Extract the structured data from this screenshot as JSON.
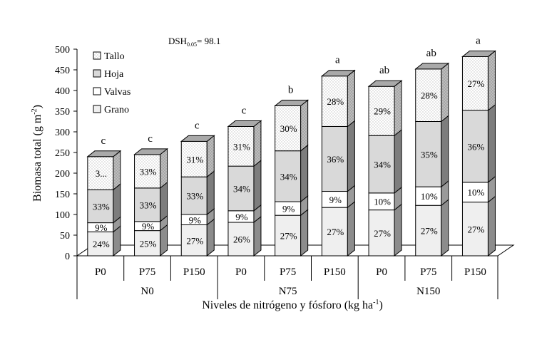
{
  "chart_data": {
    "type": "bar",
    "stacked": true,
    "three_d": true,
    "annotation_main": "DSH",
    "annotation_sub": "0.05",
    "annotation_value": "= 98.1",
    "ylabel_main": "Biomasa total (g m",
    "ylabel_sup": "-2",
    "ylabel_end": ")",
    "xlabel_main": "Niveles de nitrógeno y fósforo (kg ha",
    "xlabel_sup": "-1",
    "xlabel_end": ")",
    "ylim": [
      0,
      500
    ],
    "yticks": [
      "0",
      "50",
      "100",
      "150",
      "200",
      "250",
      "300",
      "350",
      "400",
      "450",
      "500"
    ],
    "legend_position": "top-left",
    "series_order_bottom_to_top": [
      "Grano",
      "Valvas",
      "Hoja",
      "Tallo"
    ],
    "legend": [
      {
        "label": "Tallo",
        "pattern": "dots",
        "color": "#ffffff"
      },
      {
        "label": "Hoja",
        "pattern": "solid",
        "color": "#d9d9d9"
      },
      {
        "label": "Valvas",
        "pattern": "solid",
        "color": "#ffffff"
      },
      {
        "label": "Grano",
        "pattern": "solid",
        "color": "#efefef"
      }
    ],
    "groups": [
      {
        "label": "N0",
        "categories": [
          "P0",
          "P75",
          "P150"
        ]
      },
      {
        "label": "N75",
        "categories": [
          "P0",
          "P75",
          "P150"
        ]
      },
      {
        "label": "N150",
        "categories": [
          "P0",
          "P75",
          "P150"
        ]
      }
    ],
    "bars": [
      {
        "category": "P0",
        "group": "N0",
        "total": 240,
        "letter": "c",
        "segments": [
          58,
          22,
          80,
          80
        ],
        "labels": [
          "24%",
          "9%",
          "33%",
          "3..."
        ]
      },
      {
        "category": "P75",
        "group": "N0",
        "total": 245,
        "letter": "c",
        "segments": [
          61,
          22,
          81,
          81
        ],
        "labels": [
          "25%",
          "9%",
          "33%",
          "33%"
        ]
      },
      {
        "category": "P150",
        "group": "N0",
        "total": 277,
        "letter": "c",
        "segments": [
          75,
          25,
          91,
          86
        ],
        "labels": [
          "27%",
          "9%",
          "33%",
          "31%"
        ]
      },
      {
        "category": "P0",
        "group": "N75",
        "total": 313,
        "letter": "c",
        "segments": [
          81,
          28,
          108,
          96
        ],
        "labels": [
          "26%",
          "9%",
          "34%",
          "31%"
        ]
      },
      {
        "category": "P75",
        "group": "N75",
        "total": 363,
        "letter": "b",
        "segments": [
          98,
          33,
          123,
          109
        ],
        "labels": [
          "27%",
          "9%",
          "34%",
          "30%"
        ]
      },
      {
        "category": "P150",
        "group": "N75",
        "total": 435,
        "letter": "a",
        "segments": [
          117,
          39,
          157,
          122
        ],
        "labels": [
          "27%",
          "9%",
          "36%",
          "28%"
        ]
      },
      {
        "category": "P0",
        "group": "N150",
        "total": 410,
        "letter": "ab",
        "segments": [
          111,
          41,
          139,
          119
        ],
        "labels": [
          "27%",
          "10%",
          "34%",
          "29%"
        ]
      },
      {
        "category": "P75",
        "group": "N150",
        "total": 452,
        "letter": "ab",
        "segments": [
          122,
          45,
          158,
          127
        ],
        "labels": [
          "27%",
          "10%",
          "35%",
          "28%"
        ]
      },
      {
        "category": "P150",
        "group": "N150",
        "total": 482,
        "letter": "a",
        "segments": [
          130,
          48,
          174,
          130
        ],
        "labels": [
          "27%",
          "10%",
          "36%",
          "27%"
        ]
      }
    ]
  }
}
